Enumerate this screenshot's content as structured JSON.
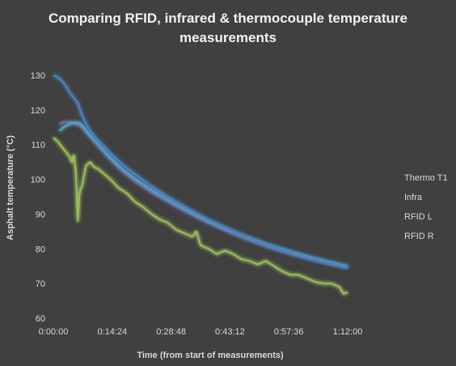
{
  "chart_data": {
    "type": "line",
    "title_lines": [
      "Comparing RFID, infrared & thermocouple temperature",
      "measurements"
    ],
    "xlabel": "Time (from start of measurements)",
    "ylabel": "Asphalt temperature (°C)",
    "xlim": [
      0,
      72
    ],
    "ylim": [
      60,
      130
    ],
    "x_unit": "minutes",
    "x_tick_labels": [
      "0:00:00",
      "0:14:24",
      "0:28:48",
      "0:43:12",
      "0:57:36",
      "1:12:00"
    ],
    "y_ticks": [
      60,
      70,
      80,
      90,
      100,
      110,
      120,
      130
    ],
    "grid": false,
    "legend_position": "right",
    "background": "#404040",
    "series": [
      {
        "name": "Thermo T1",
        "color": "#4f81bd",
        "x": [
          0,
          1,
          2,
          3,
          4,
          5,
          6,
          7,
          8,
          9,
          10,
          12,
          14,
          16,
          18,
          20,
          24,
          28,
          32,
          36,
          40,
          44,
          48,
          52,
          56,
          60,
          64,
          68,
          72
        ],
        "y": [
          130,
          129.5,
          128.5,
          127,
          125,
          123.5,
          122,
          118.5,
          116,
          114,
          112.5,
          110,
          107.5,
          105.3,
          103.3,
          101.5,
          98,
          95,
          92.2,
          89.6,
          87.2,
          85,
          83,
          81.2,
          79.6,
          78.2,
          76.9,
          75.7,
          74.6
        ]
      },
      {
        "name": "Infra",
        "color": "#9bbb59",
        "x": [
          0,
          1,
          2,
          3,
          4,
          4.5,
          5,
          5.5,
          6,
          6.3,
          6.6,
          7,
          8,
          9,
          10,
          11,
          12,
          14,
          16,
          18,
          20,
          22,
          24,
          26,
          28,
          30,
          32,
          34,
          35,
          36,
          38,
          40,
          42,
          44,
          46,
          48,
          50,
          52,
          54,
          56,
          58,
          60,
          62,
          64,
          66,
          68,
          70,
          71,
          72
        ],
        "y": [
          112,
          111,
          109.5,
          108,
          106.5,
          105,
          107,
          102,
          88,
          95,
          97,
          98,
          104,
          105,
          103.5,
          103,
          102,
          100,
          97.5,
          96,
          93.5,
          92,
          90,
          88.5,
          87.5,
          85.5,
          84.5,
          83.5,
          85,
          81,
          80,
          78.5,
          79.5,
          78.5,
          77,
          76.5,
          75.5,
          76.5,
          75,
          73.5,
          72.5,
          72.5,
          71.5,
          70.5,
          70,
          70,
          69,
          67,
          67.5
        ]
      },
      {
        "name": "RFID L",
        "color": "#8064a2",
        "x": [
          1.5,
          2.5,
          3.5,
          4.5,
          5.5,
          6.5,
          7.5,
          8.5,
          10,
          12,
          14,
          16,
          18,
          20,
          24,
          28,
          32,
          36,
          40,
          44,
          48,
          52,
          56,
          60,
          64,
          68,
          72
        ],
        "y": [
          116,
          116.5,
          116.5,
          116.5,
          116,
          115.5,
          114.5,
          113,
          111,
          108.3,
          105.7,
          103.3,
          101.3,
          99.5,
          96.3,
          93.6,
          91,
          88.6,
          86.4,
          84.4,
          82.5,
          80.8,
          79.3,
          78,
          76.8,
          75.7,
          74.8
        ]
      },
      {
        "name": "RFID R",
        "color": "#4bacc6",
        "x": [
          1.5,
          2.5,
          3.5,
          4.5,
          5.5,
          6.5,
          7.5,
          8.5,
          10,
          12,
          14,
          16,
          18,
          20,
          24,
          28,
          32,
          36,
          40,
          44,
          48,
          52,
          56,
          60,
          64,
          68,
          72
        ],
        "y": [
          114,
          115,
          115.7,
          116.2,
          116.4,
          116.2,
          115,
          113.3,
          111.3,
          108.8,
          106.3,
          104,
          102,
          100.2,
          97,
          94.2,
          91.6,
          89.1,
          86.9,
          84.9,
          83.1,
          81.4,
          79.9,
          78.5,
          77.2,
          76,
          74.9
        ]
      }
    ]
  }
}
